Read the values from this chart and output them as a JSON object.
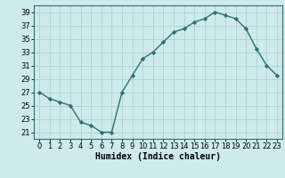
{
  "x": [
    0,
    1,
    2,
    3,
    4,
    5,
    6,
    7,
    8,
    9,
    10,
    11,
    12,
    13,
    14,
    15,
    16,
    17,
    18,
    19,
    20,
    21,
    22,
    23
  ],
  "y": [
    27,
    26,
    25.5,
    25,
    22.5,
    22,
    21,
    21,
    27,
    29.5,
    32,
    33,
    34.5,
    36,
    36.5,
    37.5,
    38,
    39,
    38.5,
    38,
    36.5,
    33.5,
    31,
    29.5
  ],
  "line_color": "#2e7070",
  "marker": "D",
  "marker_size": 2.2,
  "background_color": "#ceeaea",
  "grid_color": "#aed0d0",
  "xlabel": "Humidex (Indice chaleur)",
  "xlabel_fontsize": 7,
  "tick_fontsize": 6,
  "ylim": [
    20,
    40
  ],
  "xlim": [
    -0.5,
    23.5
  ],
  "yticks": [
    21,
    23,
    25,
    27,
    29,
    31,
    33,
    35,
    37,
    39
  ],
  "xticks": [
    0,
    1,
    2,
    3,
    4,
    5,
    6,
    7,
    8,
    9,
    10,
    11,
    12,
    13,
    14,
    15,
    16,
    17,
    18,
    19,
    20,
    21,
    22,
    23
  ]
}
